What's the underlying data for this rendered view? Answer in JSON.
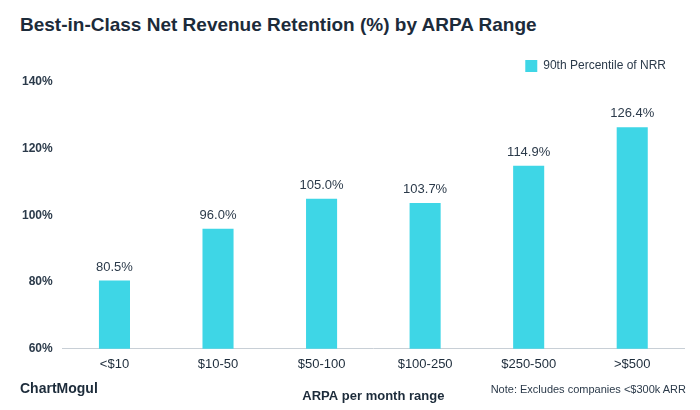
{
  "chart_data": {
    "type": "bar",
    "title": "Best-in-Class Net Revenue Retention (%) by ARPA Range",
    "x_label": "ARPA per month range",
    "source": "ChartMogul",
    "note": "Note: Excludes companies <$300k ARR",
    "categories": [
      "<$10",
      "$10-50",
      "$50-100",
      "$100-250",
      "$250-500",
      ">$500"
    ],
    "series": [
      {
        "name": "90th Percentile of NRR",
        "color": "#3ed6e6",
        "values": [
          80.5,
          96.0,
          105.0,
          103.7,
          114.9,
          126.4
        ],
        "value_labels": [
          "80.5%",
          "96.0%",
          "105.0%",
          "103.7%",
          "114.9%",
          "126.4%"
        ]
      }
    ],
    "ylim": [
      60,
      140
    ],
    "yticks": [
      {
        "value": 60,
        "label": "60%"
      },
      {
        "value": 80,
        "label": "80%"
      },
      {
        "value": 100,
        "label": "100%"
      },
      {
        "value": 120,
        "label": "120%"
      },
      {
        "value": 140,
        "label": "140%"
      }
    ],
    "grid": false,
    "legend": "upper right",
    "data_labels": true
  }
}
